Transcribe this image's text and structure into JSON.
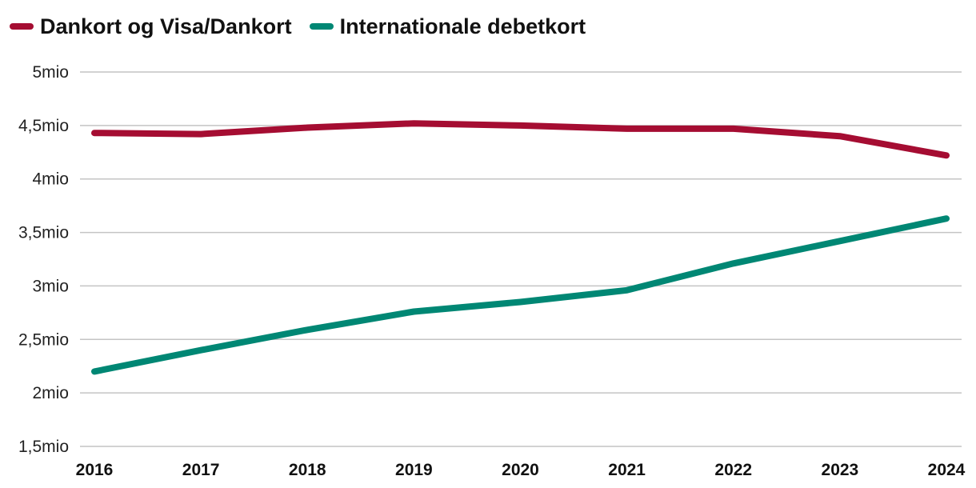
{
  "legend": {
    "items": [
      {
        "label": "Dankort og Visa/Dankort",
        "color": "#a50d32"
      },
      {
        "label": "Internationale debetkort",
        "color": "#008774"
      }
    ]
  },
  "chart_data": {
    "type": "line",
    "x": [
      "2016",
      "2017",
      "2018",
      "2019",
      "2020",
      "2021",
      "2022",
      "2023",
      "2024"
    ],
    "series": [
      {
        "name": "Dankort og Visa/Dankort",
        "color": "#a50d32",
        "values": [
          4.43,
          4.42,
          4.48,
          4.52,
          4.5,
          4.47,
          4.47,
          4.4,
          4.22
        ]
      },
      {
        "name": "Internationale debetkort",
        "color": "#008774",
        "values": [
          2.2,
          2.4,
          2.59,
          2.76,
          2.85,
          2.96,
          3.21,
          3.42,
          3.63
        ]
      }
    ],
    "ylim": [
      1.5,
      5
    ],
    "yticks": [
      1.5,
      2,
      2.5,
      3,
      3.5,
      4,
      4.5,
      5
    ],
    "ytick_labels": [
      "1,5mio",
      "2mio",
      "2,5mio",
      "3mio",
      "3,5mio",
      "4mio",
      "4,5mio",
      "5mio"
    ],
    "xlabel": "",
    "ylabel": "",
    "grid": true,
    "legend_position": "top-left"
  }
}
